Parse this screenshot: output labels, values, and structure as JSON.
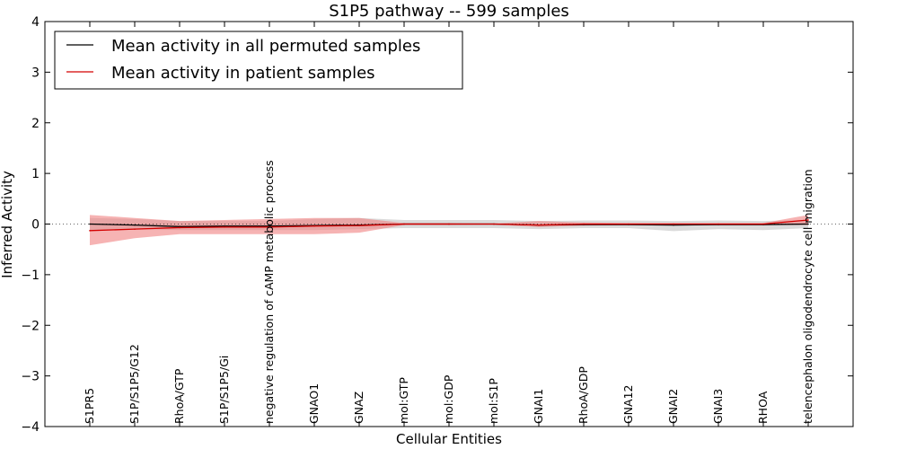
{
  "chart_data": {
    "type": "line",
    "title": "S1P5 pathway -- 599 samples",
    "xlabel": "Cellular Entities",
    "ylabel": "Inferred Activity",
    "ylim": [
      -4,
      4
    ],
    "yticks": [
      -4,
      -3,
      -2,
      -1,
      0,
      1,
      2,
      3,
      4
    ],
    "ytick_labels": [
      "−4",
      "−3",
      "−2",
      "−1",
      "0",
      "1",
      "2",
      "3",
      "4"
    ],
    "legend_position": "top-left",
    "categories": [
      "S1PR5",
      "S1P/S1P5/G12",
      "RhoA/GTP",
      "S1P/S1P5/Gi",
      "negative regulation of cAMP metabolic process",
      "GNAO1",
      "GNAZ",
      "mol:GTP",
      "mol:GDP",
      "mol:S1P",
      "GNAI1",
      "RhoA/GDP",
      "GNA12",
      "GNAI2",
      "GNAI3",
      "RHOA",
      "telencephalon oligodendrocyte cell migration"
    ],
    "series": [
      {
        "name": "Mean activity in all permuted samples",
        "color": "#000000",
        "values": [
          0.0,
          -0.02,
          -0.05,
          -0.04,
          -0.04,
          -0.03,
          -0.02,
          0.0,
          0.0,
          0.0,
          -0.02,
          -0.01,
          -0.01,
          -0.02,
          -0.01,
          -0.01,
          0.0
        ],
        "lower": [
          -0.12,
          -0.1,
          -0.12,
          -0.12,
          -0.12,
          -0.12,
          -0.1,
          -0.08,
          -0.08,
          -0.08,
          -0.1,
          -0.08,
          -0.08,
          -0.14,
          -0.1,
          -0.12,
          -0.08
        ],
        "upper": [
          0.12,
          0.1,
          0.06,
          0.06,
          0.06,
          0.1,
          0.12,
          0.08,
          0.08,
          0.08,
          0.06,
          0.07,
          0.07,
          0.06,
          0.07,
          0.06,
          0.08
        ],
        "fill_color": "#bdbdbd"
      },
      {
        "name": "Mean activity in patient samples",
        "color": "#d40000",
        "values": [
          -0.13,
          -0.1,
          -0.07,
          -0.06,
          -0.06,
          -0.04,
          -0.03,
          0.0,
          0.0,
          0.0,
          -0.02,
          0.0,
          0.0,
          0.0,
          0.0,
          0.0,
          0.08
        ],
        "lower": [
          -0.42,
          -0.28,
          -0.2,
          -0.2,
          -0.2,
          -0.2,
          -0.17,
          -0.02,
          -0.02,
          -0.01,
          -0.06,
          -0.03,
          -0.02,
          -0.02,
          -0.02,
          -0.02,
          -0.02
        ],
        "upper": [
          0.18,
          0.12,
          0.06,
          0.08,
          0.1,
          0.12,
          0.12,
          0.02,
          0.02,
          0.01,
          0.06,
          0.03,
          0.02,
          0.02,
          0.02,
          0.02,
          0.18
        ],
        "fill_color": "#f08080"
      }
    ]
  }
}
